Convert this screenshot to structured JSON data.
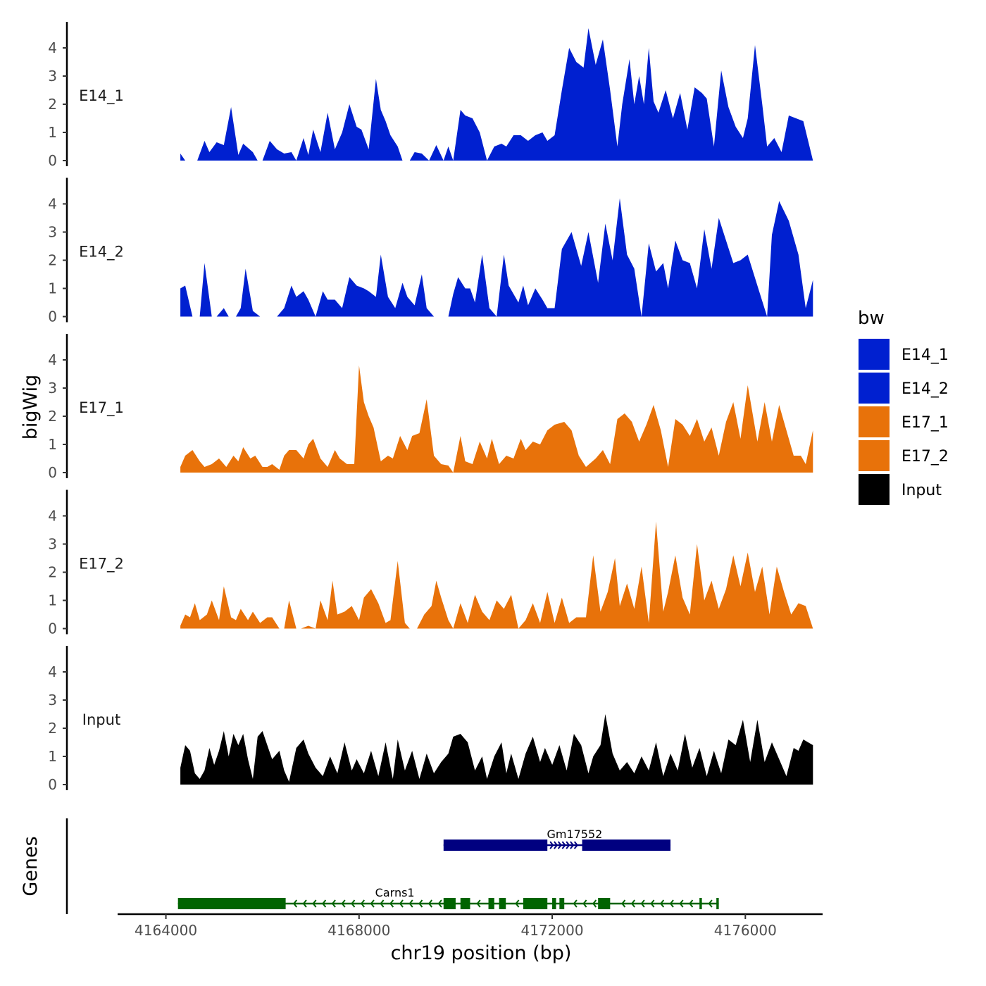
{
  "chart_data": {
    "type": "area",
    "chromosome": "chr19",
    "xlabel": "chr19 position (bp)",
    "ylabel": "bigWig",
    "genes_label": "Genes",
    "xlim": [
      4163000,
      4177600
    ],
    "x_ticks": [
      4164000,
      4168000,
      4172000,
      4176000
    ],
    "x_tick_labels": [
      "4164000",
      "4168000",
      "4172000",
      "4176000"
    ],
    "ylim": [
      0,
      4.9
    ],
    "y_ticks": [
      0,
      1,
      2,
      3,
      4
    ],
    "y_tick_labels": [
      "0",
      "1",
      "2",
      "3",
      "4"
    ],
    "region": [
      4164300,
      4177400
    ],
    "legend": {
      "title": "bw",
      "entries": [
        {
          "label": "E14_1",
          "color": "#0020D0"
        },
        {
          "label": "E14_2",
          "color": "#0020D0"
        },
        {
          "label": "E17_1",
          "color": "#E8720A"
        },
        {
          "label": "E17_2",
          "color": "#E8720A"
        },
        {
          "label": "Input",
          "color": "#000000"
        }
      ]
    },
    "series": [
      {
        "name": "E14_1",
        "color": "#0020D0",
        "x": [
          4164300,
          4164400,
          4164500,
          4164650,
          4164800,
          4164900,
          4165050,
          4165200,
          4165350,
          4165500,
          4165600,
          4165700,
          4165800,
          4165900,
          4166000,
          4166150,
          4166300,
          4166450,
          4166600,
          4166700,
          4166850,
          4166950,
          4167050,
          4167200,
          4167350,
          4167500,
          4167650,
          4167800,
          4167950,
          4168050,
          4168200,
          4168350,
          4168450,
          4168550,
          4168650,
          4168800,
          4168900,
          4169050,
          4169150,
          4169300,
          4169450,
          4169600,
          4169750,
          4169850,
          4169950,
          4170100,
          4170200,
          4170350,
          4170500,
          4170650,
          4170800,
          4170950,
          4171050,
          4171200,
          4171350,
          4171500,
          4171650,
          4171800,
          4171900,
          4172050,
          4172200,
          4172350,
          4172500,
          4172650,
          4172750,
          4172900,
          4173050,
          4173200,
          4173350,
          4173450,
          4173600,
          4173700,
          4173800,
          4173900,
          4174000,
          4174100,
          4174200,
          4174350,
          4174500,
          4174650,
          4174800,
          4174950,
          4175100,
          4175200,
          4175350,
          4175500,
          4175650,
          4175800,
          4175950,
          4176050,
          4176200,
          4176350,
          4176450,
          4176600,
          4176750,
          4176900,
          4177050,
          4177200,
          4177400
        ],
        "values": [
          0.25,
          0,
          0,
          0,
          0.7,
          0.3,
          0.65,
          0.55,
          1.9,
          0.2,
          0.6,
          0.45,
          0.3,
          0,
          0,
          0.7,
          0.4,
          0.25,
          0.3,
          0,
          0.8,
          0.2,
          1.1,
          0.3,
          1.7,
          0.4,
          1.0,
          2.0,
          1.2,
          1.1,
          0.4,
          2.9,
          1.8,
          1.4,
          0.9,
          0.5,
          0,
          0,
          0.3,
          0.25,
          0,
          0.55,
          0,
          0.5,
          0,
          1.8,
          1.6,
          1.5,
          1.0,
          0,
          0.5,
          0.6,
          0.5,
          0.9,
          0.9,
          0.7,
          0.9,
          1.0,
          0.7,
          0.9,
          2.5,
          4.0,
          3.5,
          3.3,
          4.7,
          3.4,
          4.3,
          2.5,
          0.5,
          2.0,
          3.6,
          2.0,
          3.0,
          2.0,
          4.0,
          2.1,
          1.7,
          2.5,
          1.5,
          2.4,
          1.1,
          2.6,
          2.4,
          2.2,
          0.5,
          3.2,
          1.9,
          1.2,
          0.8,
          1.5,
          4.1,
          2.0,
          0.5,
          0.8,
          0.3,
          1.6,
          1.5,
          1.4,
          0
        ],
        "label_y": 2.3
      },
      {
        "name": "E14_2",
        "color": "#0020D0",
        "x": [
          4164300,
          4164400,
          4164550,
          4164700,
          4164800,
          4164950,
          4165050,
          4165200,
          4165300,
          4165450,
          4165550,
          4165650,
          4165800,
          4165950,
          4166100,
          4166200,
          4166300,
          4166450,
          4166600,
          4166700,
          4166850,
          4166950,
          4167100,
          4167250,
          4167350,
          4167500,
          4167650,
          4167800,
          4167950,
          4168100,
          4168200,
          4168350,
          4168450,
          4168600,
          4168750,
          4168900,
          4169000,
          4169150,
          4169300,
          4169400,
          4169550,
          4169700,
          4169850,
          4169950,
          4170050,
          4170200,
          4170300,
          4170400,
          4170550,
          4170700,
          4170850,
          4171000,
          4171100,
          4171300,
          4171400,
          4171500,
          4171650,
          4171800,
          4171900,
          4172050,
          4172200,
          4172400,
          4172600,
          4172750,
          4172950,
          4173100,
          4173250,
          4173400,
          4173550,
          4173700,
          4173850,
          4174000,
          4174150,
          4174300,
          4174400,
          4174550,
          4174700,
          4174850,
          4175000,
          4175150,
          4175300,
          4175450,
          4175600,
          4175750,
          4175900,
          4176050,
          4176250,
          4176450,
          4176550,
          4176700,
          4176900,
          4177100,
          4177250,
          4177400
        ],
        "values": [
          1.0,
          1.1,
          0,
          0,
          1.9,
          0,
          0,
          0.3,
          0,
          0,
          0.3,
          1.7,
          0.2,
          0,
          0,
          0,
          0,
          0.3,
          1.1,
          0.7,
          0.9,
          0.6,
          0,
          0.9,
          0.6,
          0.6,
          0.3,
          1.4,
          1.1,
          1.0,
          0.9,
          0.7,
          2.2,
          0.7,
          0.3,
          1.2,
          0.7,
          0.4,
          1.5,
          0.3,
          0,
          0,
          0,
          0.8,
          1.4,
          1.0,
          1.0,
          0.5,
          2.2,
          0.3,
          0,
          2.2,
          1.1,
          0.5,
          1.1,
          0.4,
          1.0,
          0.6,
          0.3,
          0.3,
          2.4,
          3.0,
          1.8,
          3.0,
          1.2,
          3.3,
          2.0,
          4.2,
          2.2,
          1.7,
          0,
          2.6,
          1.6,
          1.9,
          1.0,
          2.7,
          2.0,
          1.9,
          1.0,
          3.1,
          1.7,
          3.5,
          2.7,
          1.9,
          2.0,
          2.2,
          1.1,
          0,
          2.9,
          4.1,
          3.4,
          2.2,
          0.3,
          1.3
        ],
        "label_y": 2.3
      },
      {
        "name": "E17_1",
        "color": "#E8720A",
        "x": [
          4164300,
          4164400,
          4164550,
          4164700,
          4164800,
          4164950,
          4165100,
          4165250,
          4165400,
          4165500,
          4165600,
          4165750,
          4165850,
          4166000,
          4166100,
          4166200,
          4166350,
          4166450,
          4166550,
          4166700,
          4166850,
          4166950,
          4167050,
          4167200,
          4167350,
          4167500,
          4167600,
          4167750,
          4167900,
          4168000,
          4168100,
          4168200,
          4168300,
          4168450,
          4168600,
          4168700,
          4168850,
          4169000,
          4169100,
          4169250,
          4169400,
          4169550,
          4169700,
          4169850,
          4169950,
          4170100,
          4170200,
          4170350,
          4170500,
          4170650,
          4170750,
          4170900,
          4171050,
          4171200,
          4171350,
          4171450,
          4171600,
          4171750,
          4171900,
          4172050,
          4172250,
          4172400,
          4172550,
          4172700,
          4172900,
          4173050,
          4173200,
          4173350,
          4173500,
          4173650,
          4173800,
          4173950,
          4174100,
          4174250,
          4174400,
          4174550,
          4174700,
          4174850,
          4175000,
          4175150,
          4175300,
          4175450,
          4175600,
          4175750,
          4175900,
          4176050,
          4176250,
          4176400,
          4176550,
          4176700,
          4176850,
          4177000,
          4177150,
          4177250,
          4177400
        ],
        "values": [
          0.2,
          0.6,
          0.8,
          0.4,
          0.2,
          0.3,
          0.5,
          0.2,
          0.6,
          0.4,
          0.9,
          0.5,
          0.6,
          0.2,
          0.2,
          0.3,
          0.1,
          0.6,
          0.8,
          0.8,
          0.5,
          1.0,
          1.2,
          0.5,
          0.2,
          0.8,
          0.5,
          0.3,
          0.3,
          3.8,
          2.5,
          2.0,
          1.6,
          0.4,
          0.6,
          0.5,
          1.3,
          0.8,
          1.3,
          1.4,
          2.6,
          0.6,
          0.3,
          0.25,
          0,
          1.3,
          0.4,
          0.3,
          1.1,
          0.5,
          1.2,
          0.3,
          0.6,
          0.5,
          1.2,
          0.8,
          1.1,
          1.0,
          1.5,
          1.7,
          1.8,
          1.5,
          0.6,
          0.2,
          0.5,
          0.8,
          0.3,
          1.9,
          2.1,
          1.8,
          1.1,
          1.7,
          2.4,
          1.5,
          0.2,
          1.9,
          1.7,
          1.3,
          1.9,
          1.1,
          1.6,
          0.6,
          1.8,
          2.5,
          1.2,
          3.1,
          1.1,
          2.5,
          1.1,
          2.4,
          1.5,
          0.6,
          0.6,
          0.3,
          1.5
        ],
        "label_y": 2.3
      },
      {
        "name": "E17_2",
        "color": "#E8720A",
        "x": [
          4164300,
          4164400,
          4164500,
          4164600,
          4164700,
          4164850,
          4164950,
          4165100,
          4165200,
          4165350,
          4165450,
          4165550,
          4165700,
          4165800,
          4165950,
          4166100,
          4166200,
          4166350,
          4166450,
          4166550,
          4166700,
          4166800,
          4166950,
          4167100,
          4167200,
          4167350,
          4167450,
          4167550,
          4167700,
          4167850,
          4168000,
          4168100,
          4168250,
          4168400,
          4168550,
          4168650,
          4168800,
          4168950,
          4169050,
          4169200,
          4169350,
          4169500,
          4169600,
          4169700,
          4169850,
          4169950,
          4170100,
          4170250,
          4170400,
          4170550,
          4170700,
          4170850,
          4171000,
          4171150,
          4171300,
          4171450,
          4171600,
          4171750,
          4171900,
          4172050,
          4172200,
          4172350,
          4172500,
          4172700,
          4172850,
          4173000,
          4173150,
          4173300,
          4173400,
          4173550,
          4173700,
          4173850,
          4174000,
          4174150,
          4174300,
          4174400,
          4174550,
          4174700,
          4174850,
          4175000,
          4175150,
          4175300,
          4175450,
          4175600,
          4175750,
          4175900,
          4176050,
          4176200,
          4176350,
          4176500,
          4176650,
          4176800,
          4176950,
          4177100,
          4177250,
          4177400
        ],
        "values": [
          0.1,
          0.5,
          0.4,
          0.9,
          0.3,
          0.5,
          1.0,
          0.3,
          1.5,
          0.4,
          0.3,
          0.7,
          0.3,
          0.6,
          0.2,
          0.4,
          0.4,
          0,
          0,
          1.0,
          0,
          0,
          0.1,
          0,
          1.0,
          0.3,
          1.7,
          0.5,
          0.6,
          0.8,
          0.3,
          1.1,
          1.4,
          0.9,
          0.2,
          0.3,
          2.4,
          0.2,
          0,
          0,
          0.5,
          0.8,
          1.7,
          1.1,
          0.3,
          0,
          0.9,
          0.2,
          1.2,
          0.6,
          0.3,
          1.0,
          0.7,
          1.2,
          0,
          0.3,
          0.9,
          0.2,
          1.3,
          0.2,
          1.1,
          0.2,
          0.4,
          0.4,
          2.6,
          0.6,
          1.3,
          2.5,
          0.8,
          1.6,
          0.7,
          2.2,
          0.2,
          3.8,
          0.6,
          1.3,
          2.6,
          1.1,
          0.5,
          3.0,
          1.0,
          1.7,
          0.7,
          1.4,
          2.6,
          1.5,
          2.7,
          1.3,
          2.2,
          0.5,
          2.2,
          1.3,
          0.5,
          0.9,
          0.8,
          0
        ],
        "label_y": 2.3
      },
      {
        "name": "Input",
        "color": "#000000",
        "x": [
          4164300,
          4164400,
          4164500,
          4164600,
          4164700,
          4164800,
          4164900,
          4165000,
          4165100,
          4165200,
          4165300,
          4165400,
          4165500,
          4165600,
          4165700,
          4165800,
          4165900,
          4166000,
          4166100,
          4166200,
          4166350,
          4166450,
          4166550,
          4166700,
          4166850,
          4166950,
          4167100,
          4167250,
          4167400,
          4167550,
          4167700,
          4167850,
          4167950,
          4168100,
          4168250,
          4168400,
          4168550,
          4168700,
          4168800,
          4168950,
          4169100,
          4169250,
          4169400,
          4169550,
          4169700,
          4169850,
          4169950,
          4170100,
          4170250,
          4170400,
          4170550,
          4170650,
          4170800,
          4170950,
          4171050,
          4171150,
          4171300,
          4171450,
          4171600,
          4171750,
          4171850,
          4172000,
          4172150,
          4172300,
          4172450,
          4172600,
          4172750,
          4172850,
          4173000,
          4173100,
          4173250,
          4173400,
          4173550,
          4173700,
          4173850,
          4174000,
          4174150,
          4174300,
          4174450,
          4174600,
          4174750,
          4174900,
          4175050,
          4175200,
          4175350,
          4175500,
          4175650,
          4175800,
          4175950,
          4176100,
          4176250,
          4176400,
          4176550,
          4176700,
          4176850,
          4177000,
          4177100,
          4177200,
          4177300,
          4177400
        ],
        "values": [
          0.6,
          1.4,
          1.2,
          0.4,
          0.2,
          0.5,
          1.3,
          0.7,
          1.2,
          1.9,
          1.0,
          1.8,
          1.4,
          1.8,
          0.9,
          0.2,
          1.7,
          1.9,
          1.4,
          0.9,
          1.2,
          0.5,
          0.1,
          1.3,
          1.6,
          1.1,
          0.6,
          0.3,
          1.0,
          0.4,
          1.5,
          0.5,
          0.9,
          0.4,
          1.2,
          0.3,
          1.5,
          0.2,
          1.6,
          0.5,
          1.2,
          0.2,
          1.1,
          0.4,
          0.8,
          1.1,
          1.7,
          1.8,
          1.5,
          0.5,
          1.0,
          0.2,
          1.0,
          1.5,
          0.4,
          1.1,
          0.2,
          1.1,
          1.7,
          0.8,
          1.3,
          0.7,
          1.4,
          0.5,
          1.8,
          1.4,
          0.4,
          1.0,
          1.4,
          2.5,
          1.1,
          0.5,
          0.8,
          0.4,
          1.0,
          0.5,
          1.5,
          0.3,
          1.1,
          0.5,
          1.8,
          0.6,
          1.3,
          0.3,
          1.2,
          0.4,
          1.6,
          1.4,
          2.3,
          0.8,
          2.3,
          0.8,
          1.5,
          0.9,
          0.3,
          1.3,
          1.2,
          1.6,
          1.5,
          1.4
        ],
        "label_y": 2.3
      }
    ],
    "genes": [
      {
        "name": "Gm17552",
        "strand": "+",
        "color": "#000080",
        "start": 4169750,
        "end": 4174450,
        "exons": [
          [
            4169750,
            4171900
          ],
          [
            4172620,
            4174450
          ]
        ]
      },
      {
        "name": "Carns1",
        "strand": "-",
        "color": "#006400",
        "start": 4164250,
        "end": 4175450,
        "exons": [
          [
            4164250,
            4166480
          ],
          [
            4169750,
            4170000
          ],
          [
            4170100,
            4170300
          ],
          [
            4170680,
            4170800
          ],
          [
            4170900,
            4171040
          ],
          [
            4171400,
            4171900
          ],
          [
            4172000,
            4172080
          ],
          [
            4172150,
            4172250
          ],
          [
            4172950,
            4173200
          ],
          [
            4175050,
            4175100
          ],
          [
            4175400,
            4175450
          ]
        ]
      }
    ]
  }
}
